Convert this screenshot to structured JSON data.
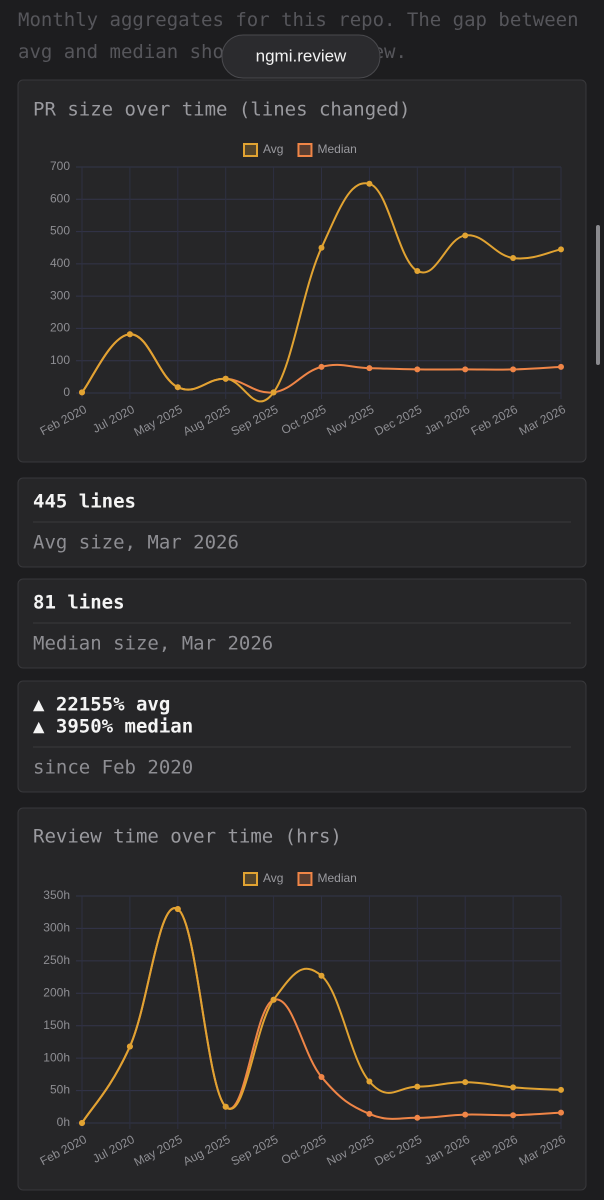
{
  "intro": "Monthly aggregates for this repo. The gap between avg and median shows outlier skew.",
  "brand": "ngmi.review",
  "cards": [
    {
      "lines": [
        "445 lines"
      ],
      "subtitle": "Avg size, Mar 2026"
    },
    {
      "lines": [
        "81 lines"
      ],
      "subtitle": "Median size, Mar 2026"
    },
    {
      "lines": [
        "▲ 22155% avg",
        "▲ 3950% median"
      ],
      "subtitle": "since Feb 2020"
    }
  ],
  "chart_data": [
    {
      "type": "line",
      "title": "PR size over time (lines changed)",
      "categories": [
        "Feb 2020",
        "Jul 2020",
        "May 2025",
        "Aug 2025",
        "Sep 2025",
        "Oct 2025",
        "Nov 2025",
        "Dec 2025",
        "Jan 2026",
        "Feb 2026",
        "Mar 2026"
      ],
      "series": [
        {
          "name": "Avg",
          "color": "#e1a332",
          "values": [
            2,
            182,
            18,
            44,
            2,
            450,
            648,
            378,
            488,
            418,
            445
          ]
        },
        {
          "name": "Median",
          "color": "#ef8547",
          "values": [
            2,
            182,
            18,
            44,
            2,
            81,
            77,
            73,
            73,
            73,
            81
          ]
        }
      ],
      "ylim": [
        0,
        700
      ],
      "yticks": [
        0,
        100,
        200,
        300,
        400,
        500,
        600,
        700
      ],
      "grid": true,
      "legend": "top"
    },
    {
      "type": "line",
      "title": "Review time over time (hrs)",
      "categories": [
        "Feb 2020",
        "Jul 2020",
        "May 2025",
        "Aug 2025",
        "Sep 2025",
        "Oct 2025",
        "Nov 2025",
        "Dec 2025",
        "Jan 2026",
        "Feb 2026",
        "Mar 2026"
      ],
      "series": [
        {
          "name": "Avg",
          "color": "#e1a332",
          "values": [
            0,
            118,
            330,
            25,
            190,
            227,
            64,
            56,
            63,
            55,
            51
          ]
        },
        {
          "name": "Median",
          "color": "#ef8547",
          "values": [
            0,
            118,
            330,
            25,
            190,
            71,
            14,
            8,
            13,
            12,
            16
          ]
        }
      ],
      "ylim": [
        0,
        350
      ],
      "yticks": [
        {
          "value": 0,
          "label": "0h"
        },
        {
          "value": 50,
          "label": "50h"
        },
        {
          "value": 100,
          "label": "100h"
        },
        {
          "value": 150,
          "label": "150h"
        },
        {
          "value": 200,
          "label": "200h"
        },
        {
          "value": 250,
          "label": "250h"
        },
        {
          "value": 300,
          "label": "300h"
        },
        {
          "value": 350,
          "label": "350h"
        }
      ],
      "grid": true,
      "legend": "top"
    }
  ]
}
